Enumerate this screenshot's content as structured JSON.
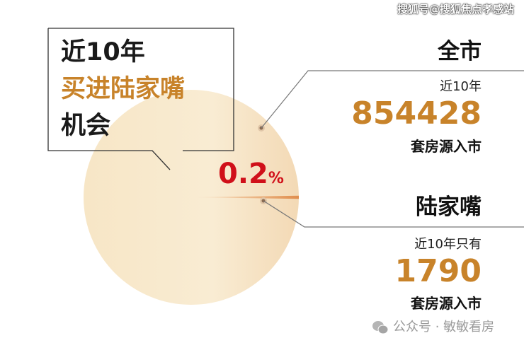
{
  "watermark_top": "搜狐号@搜狐焦点孝感站",
  "callout": {
    "line1": "近10年",
    "line2": "买进陆家嘴",
    "line3": "机会"
  },
  "city": {
    "title": "全市",
    "period": "近10年",
    "value": "854428",
    "unit": "套房源入市"
  },
  "lujiazui": {
    "title": "陆家嘴",
    "period": "近10年只有",
    "value": "1790",
    "unit": "套房源入市"
  },
  "share_label": {
    "value": "0.2",
    "suffix": "%"
  },
  "wechat": {
    "icon": "wechat-icon",
    "text": "公众号 · 敏敏看房"
  },
  "colors": {
    "accent": "#c8832a",
    "red": "#d0101a",
    "pie": "#f6e4c2",
    "slice": "#e8a066"
  },
  "chart_data": {
    "type": "pie",
    "slices": [
      {
        "label": "陆家嘴",
        "value": 1790,
        "percent": 0.2
      },
      {
        "label": "全市",
        "value": 854428
      }
    ]
  }
}
